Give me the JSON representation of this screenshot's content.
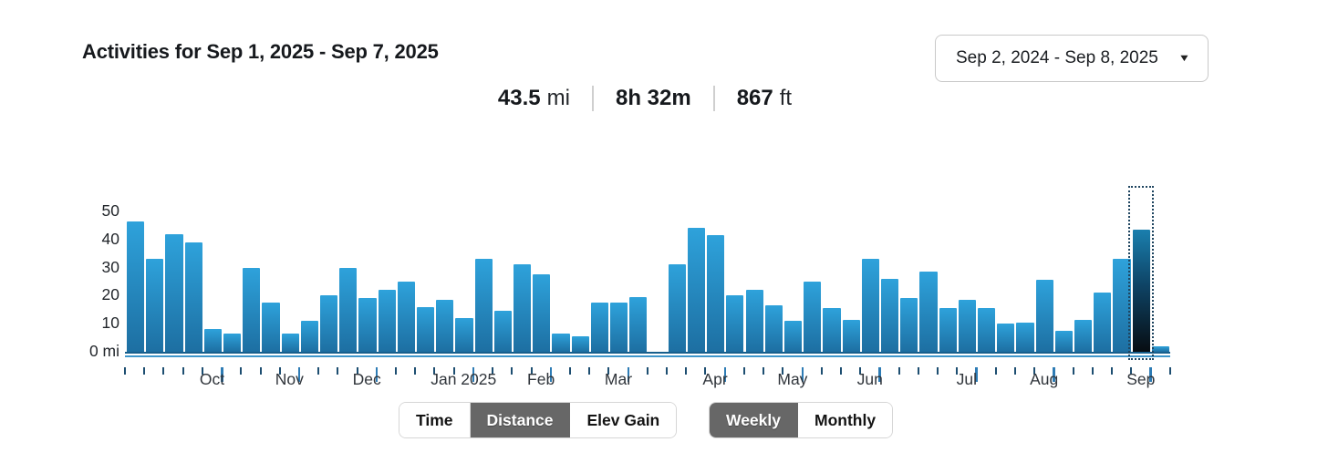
{
  "header": {
    "title": "Activities for Sep 1, 2025 - Sep 7, 2025",
    "date_range_selector": {
      "label": "Sep 2, 2024 - Sep 8, 2025"
    }
  },
  "summary_stats": [
    {
      "value": "43.5",
      "unit": "mi"
    },
    {
      "value": "8h 32m",
      "unit": ""
    },
    {
      "value": "867",
      "unit": "ft"
    }
  ],
  "chart_data": {
    "type": "bar",
    "unit": "mi",
    "ylabel": "mi",
    "ylim": [
      0,
      59
    ],
    "grid": false,
    "y_ticks": [
      {
        "value": 50,
        "label": "50"
      },
      {
        "value": 40,
        "label": "40"
      },
      {
        "value": 30,
        "label": "30"
      },
      {
        "value": 20,
        "label": "20"
      },
      {
        "value": 10,
        "label": "10"
      },
      {
        "value": 0,
        "label": "0 mi"
      }
    ],
    "values": [
      46.5,
      33,
      42,
      39,
      8,
      6.5,
      30,
      17.5,
      6.5,
      11,
      20,
      30,
      19,
      22,
      25,
      16,
      18.5,
      12,
      33,
      14.5,
      31,
      27.5,
      6.5,
      5.5,
      17.5,
      17.5,
      19.5,
      0,
      31,
      44,
      41.5,
      20,
      22,
      16.5,
      11,
      25,
      15.5,
      11.5,
      33,
      26,
      19,
      28.5,
      15.5,
      18.5,
      15.5,
      10,
      10.5,
      25.5,
      7.5,
      11.5,
      21,
      33,
      43.5,
      2
    ],
    "selected_index": 52,
    "selected_value_mi": 43.5,
    "months": [
      {
        "label": "Oct",
        "bar_index": 4
      },
      {
        "label": "Nov",
        "bar_index": 8
      },
      {
        "label": "Dec",
        "bar_index": 12
      },
      {
        "label": "Jan 2025",
        "bar_index": 17
      },
      {
        "label": "Feb",
        "bar_index": 21
      },
      {
        "label": "Mar",
        "bar_index": 25
      },
      {
        "label": "Apr",
        "bar_index": 30
      },
      {
        "label": "May",
        "bar_index": 34
      },
      {
        "label": "Jun",
        "bar_index": 38
      },
      {
        "label": "Jul",
        "bar_index": 43
      },
      {
        "label": "Aug",
        "bar_index": 47
      },
      {
        "label": "Sep",
        "bar_index": 52
      }
    ],
    "colors": {
      "bar_gradient_top": "#2ea2db",
      "bar_gradient_bottom": "#1d6fa2",
      "selected_bar_top": "#1a7fae",
      "selected_bar_mid": "#0e4466",
      "selected_bar_bottom": "#070d12",
      "axis_line_dark": "#175f8d",
      "axis_line_light": "#3e96cb",
      "tick": "#1d4e71",
      "month_tick": "#2e7cb5",
      "selection_outline": "#1f4560"
    }
  },
  "controls": {
    "metric_toggle": {
      "options": [
        {
          "label": "Time",
          "selected": false
        },
        {
          "label": "Distance",
          "selected": true
        },
        {
          "label": "Elev Gain",
          "selected": false
        }
      ]
    },
    "period_toggle": {
      "options": [
        {
          "label": "Weekly",
          "selected": true
        },
        {
          "label": "Monthly",
          "selected": false
        }
      ]
    }
  }
}
